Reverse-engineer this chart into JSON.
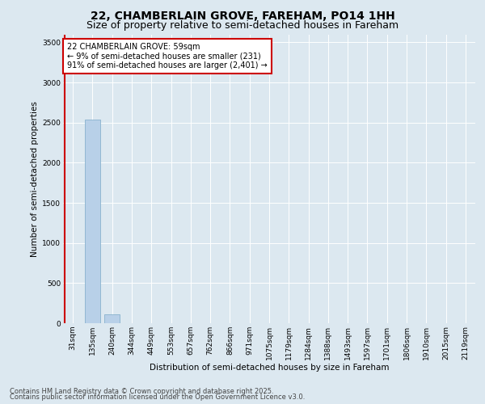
{
  "title_line1": "22, CHAMBERLAIN GROVE, FAREHAM, PO14 1HH",
  "title_line2": "Size of property relative to semi-detached houses in Fareham",
  "xlabel": "Distribution of semi-detached houses by size in Fareham",
  "ylabel": "Number of semi-detached properties",
  "footnote_line1": "Contains HM Land Registry data © Crown copyright and database right 2025.",
  "footnote_line2": "Contains public sector information licensed under the Open Government Licence v3.0.",
  "categories": [
    "31sqm",
    "135sqm",
    "240sqm",
    "344sqm",
    "449sqm",
    "553sqm",
    "657sqm",
    "762sqm",
    "866sqm",
    "971sqm",
    "1075sqm",
    "1179sqm",
    "1284sqm",
    "1388sqm",
    "1493sqm",
    "1597sqm",
    "1701sqm",
    "1806sqm",
    "1910sqm",
    "2015sqm",
    "2119sqm"
  ],
  "values": [
    0,
    2540,
    110,
    0,
    0,
    0,
    0,
    0,
    0,
    0,
    0,
    0,
    0,
    0,
    0,
    0,
    0,
    0,
    0,
    0,
    0
  ],
  "bar_color": "#b8d0e8",
  "bar_edge_color": "#7aaac8",
  "highlight_color": "#cc0000",
  "annotation_text": "22 CHAMBERLAIN GROVE: 59sqm\n← 9% of semi-detached houses are smaller (231)\n91% of semi-detached houses are larger (2,401) →",
  "annotation_box_color": "#cc0000",
  "ylim": [
    0,
    3600
  ],
  "yticks": [
    0,
    500,
    1000,
    1500,
    2000,
    2500,
    3000,
    3500
  ],
  "bg_color": "#dce8f0",
  "plot_bg_color": "#dce8f0",
  "grid_color": "#ffffff",
  "title_fontsize": 10,
  "subtitle_fontsize": 9,
  "axis_label_fontsize": 7.5,
  "tick_fontsize": 6.5,
  "annotation_fontsize": 7,
  "footnote_fontsize": 6
}
